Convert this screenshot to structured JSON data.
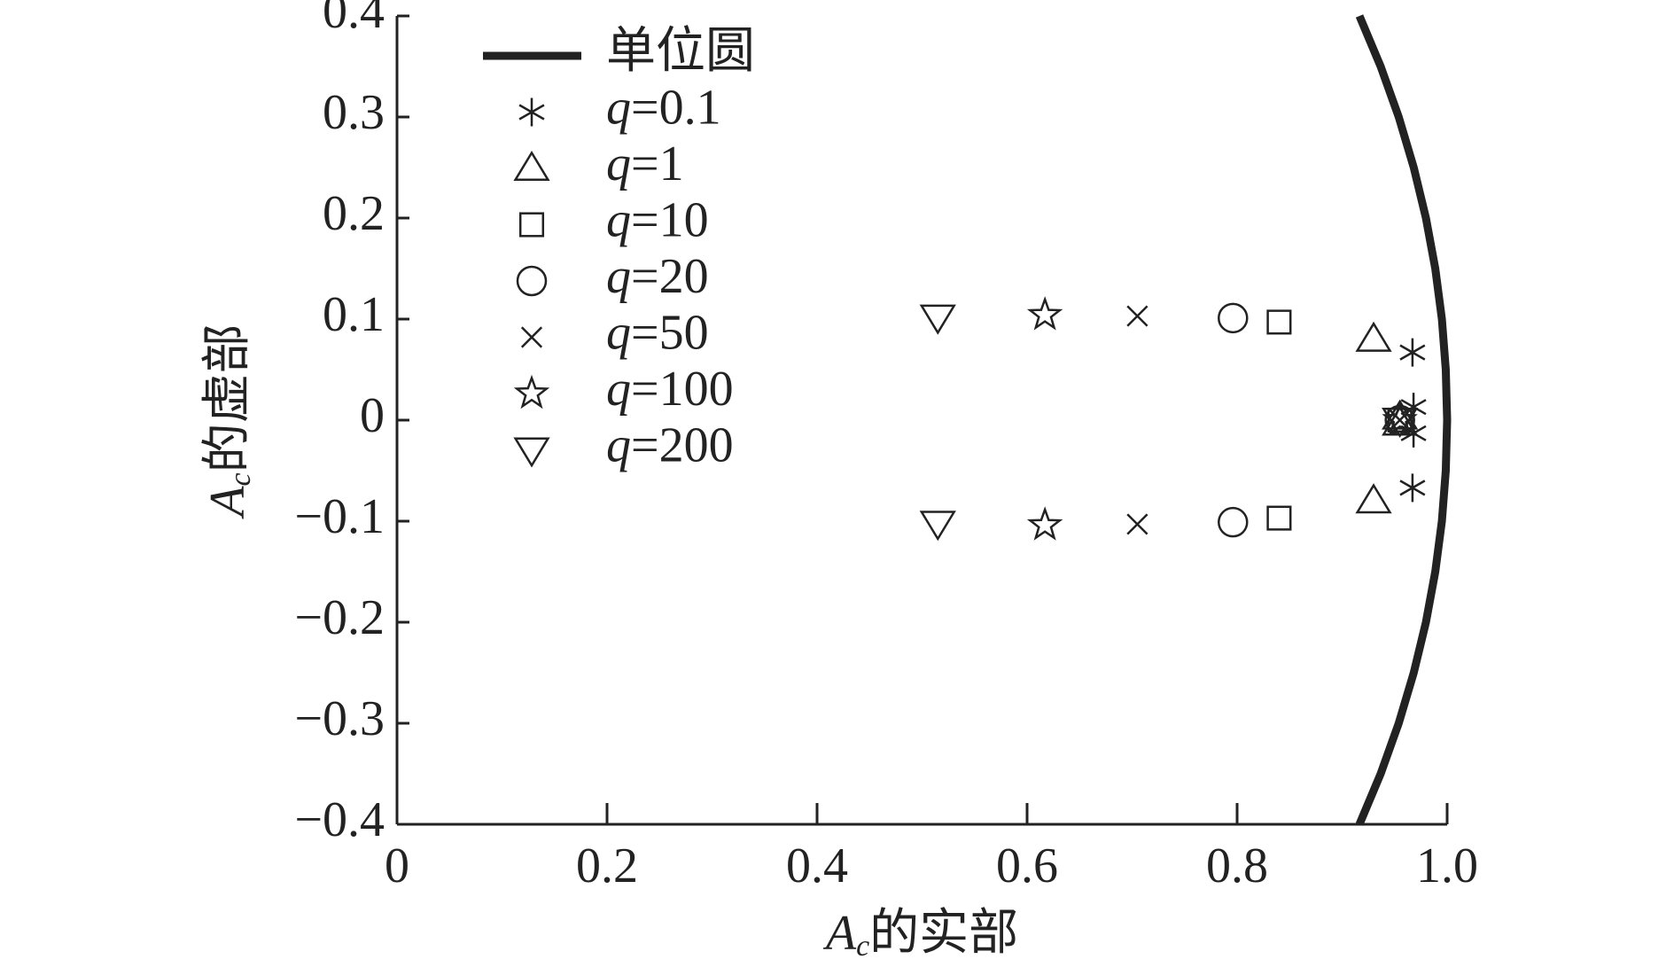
{
  "chart_data": {
    "type": "scatter",
    "xlabel": "Ac的实部",
    "ylabel": "Ac的虚部",
    "xlim": [
      0,
      1
    ],
    "ylim": [
      -0.4,
      0.4
    ],
    "xticks": [
      0,
      0.2,
      0.4,
      0.6,
      0.8,
      {
        "value": 1,
        "label": "1.0"
      }
    ],
    "yticks": [
      {
        "value": -0.4,
        "label": "−0.4"
      },
      {
        "value": -0.3,
        "label": "−0.3"
      },
      {
        "value": -0.2,
        "label": "−0.2"
      },
      {
        "value": -0.1,
        "label": "−0.1"
      },
      0,
      0.1,
      0.2,
      0.3,
      0.4
    ],
    "series": [
      {
        "name": "单位圆",
        "marker": "line",
        "color": "#222",
        "x": [
          0.9165,
          0.9367,
          0.9539,
          0.9682,
          0.9798,
          0.9887,
          0.995,
          0.9987,
          1,
          0.9987,
          0.995,
          0.9887,
          0.9798,
          0.9682,
          0.9539,
          0.9367,
          0.9165
        ],
        "y": [
          -0.4,
          -0.35,
          -0.3,
          -0.25,
          -0.2,
          -0.15,
          -0.1,
          -0.05,
          0,
          0.05,
          0.1,
          0.15,
          0.2,
          0.25,
          0.3,
          0.35,
          0.4
        ]
      },
      {
        "name": "q=0.1",
        "marker": "asterisk",
        "color": "#222",
        "x": [
          0.967,
          0.967,
          0.968,
          0.968
        ],
        "y": [
          0.067,
          -0.067,
          0.013,
          -0.013
        ]
      },
      {
        "name": "q=1",
        "marker": "triangle",
        "color": "#222",
        "x": [
          0.93,
          0.93,
          0.955,
          0.955
        ],
        "y": [
          0.08,
          -0.08,
          0.003,
          -0.003
        ]
      },
      {
        "name": "q=10",
        "marker": "square",
        "color": "#222",
        "x": [
          0.84,
          0.84,
          0.955
        ],
        "y": [
          0.097,
          -0.097,
          0
        ]
      },
      {
        "name": "q=20",
        "marker": "circle",
        "color": "#222",
        "x": [
          0.796,
          0.796,
          0.955
        ],
        "y": [
          0.101,
          -0.101,
          0
        ]
      },
      {
        "name": "q=50",
        "marker": "cross",
        "color": "#222",
        "x": [
          0.705,
          0.705,
          0.955
        ],
        "y": [
          0.103,
          -0.103,
          0
        ]
      },
      {
        "name": "q=100",
        "marker": "star",
        "color": "#222",
        "x": [
          0.617,
          0.617,
          0.955
        ],
        "y": [
          0.104,
          -0.104,
          0
        ]
      },
      {
        "name": "q=200",
        "marker": "triangle-down",
        "color": "#222",
        "x": [
          0.515,
          0.515,
          0.955
        ],
        "y": [
          0.102,
          -0.102,
          0
        ]
      }
    ]
  }
}
